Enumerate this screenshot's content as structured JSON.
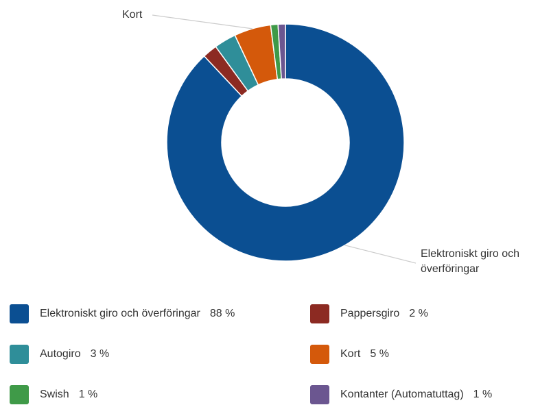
{
  "chart_data": {
    "type": "donut",
    "categories": [
      "Elektroniskt giro och överföringar",
      "Pappersgiro",
      "Autogiro",
      "Kort",
      "Swish",
      "Kontanter (Automatuttag)"
    ],
    "values": [
      88,
      2,
      3,
      5,
      1,
      1
    ],
    "value_labels": [
      "88 %",
      "2 %",
      "3 %",
      "5 %",
      "1 %",
      "1 %"
    ],
    "colors": [
      "#0b4f92",
      "#8c2a22",
      "#2f8e99",
      "#d4590b",
      "#3f9a48",
      "#6b5690"
    ],
    "legend": "bottom"
  }
}
